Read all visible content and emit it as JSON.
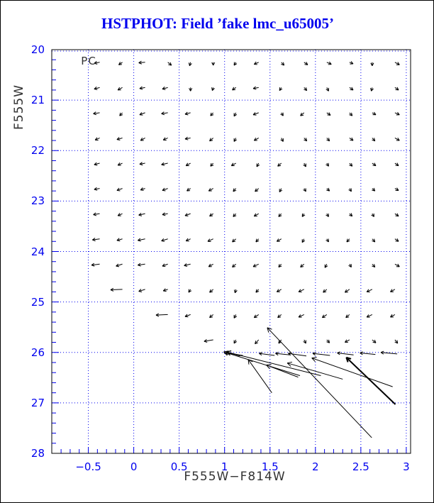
{
  "window": {
    "background": "#ffffff",
    "border_color": "#000000"
  },
  "chart_data": {
    "type": "scatter",
    "subtype": "quiver-vector-field",
    "title": "HSTPHOT: Field ’fake lmc_u65005’",
    "title_color": "#0000ee",
    "xlabel": "F555W−F814W",
    "ylabel": "F555W",
    "axis_label_color": "#333333",
    "xlim": [
      -0.9,
      3.05
    ],
    "ylim": [
      28,
      20
    ],
    "y_axis_inverted": true,
    "x_ticks": [
      -0.5,
      0,
      0.5,
      1,
      1.5,
      2,
      2.5,
      3
    ],
    "x_tick_labels": [
      "−0.5",
      "0",
      "0.5",
      "1",
      "1.5",
      "2",
      "2.5",
      "3"
    ],
    "y_ticks": [
      20,
      21,
      22,
      23,
      24,
      25,
      26,
      27,
      28
    ],
    "y_tick_labels": [
      "20",
      "21",
      "22",
      "23",
      "24",
      "25",
      "26",
      "27",
      "28"
    ],
    "x_minor_step": 0.1,
    "y_minor_step": 0.2,
    "tick_color": "#0000ee",
    "grid": true,
    "grid_style": "dotted",
    "grid_color": "#0000ee",
    "frame_color": "#000000",
    "arrow_color": "#000000",
    "annotation": {
      "text": "PC",
      "x": -0.58,
      "y": 20.1
    },
    "arrows": [
      [
        -0.375,
        20.25,
        -0.06,
        0.02
      ],
      [
        -0.125,
        20.25,
        -0.04,
        0.05
      ],
      [
        0.125,
        20.25,
        -0.07,
        0.01
      ],
      [
        0.375,
        20.25,
        0.04,
        0.06
      ],
      [
        0.625,
        20.25,
        -0.01,
        0.07
      ],
      [
        0.875,
        20.25,
        0.0,
        0.06
      ],
      [
        1.125,
        20.25,
        -0.02,
        0.06
      ],
      [
        1.375,
        20.25,
        -0.05,
        0.04
      ],
      [
        1.625,
        20.25,
        0.03,
        0.06
      ],
      [
        1.875,
        20.25,
        0.04,
        0.05
      ],
      [
        2.125,
        20.25,
        0.05,
        0.04
      ],
      [
        2.375,
        20.25,
        0.04,
        0.03
      ],
      [
        2.625,
        20.25,
        0.0,
        0.07
      ],
      [
        2.875,
        20.25,
        0.05,
        0.05
      ],
      [
        -0.375,
        20.75,
        -0.06,
        0.03
      ],
      [
        -0.125,
        20.75,
        -0.05,
        0.05
      ],
      [
        0.125,
        20.75,
        -0.06,
        0.02
      ],
      [
        0.375,
        20.75,
        -0.06,
        0.03
      ],
      [
        0.625,
        20.75,
        0.0,
        0.07
      ],
      [
        0.875,
        20.75,
        -0.01,
        0.06
      ],
      [
        1.125,
        20.75,
        -0.04,
        0.05
      ],
      [
        1.375,
        20.75,
        -0.06,
        0.02
      ],
      [
        1.625,
        20.75,
        -0.02,
        0.06
      ],
      [
        1.875,
        20.75,
        0.03,
        0.06
      ],
      [
        2.125,
        20.75,
        0.02,
        0.07
      ],
      [
        2.375,
        20.75,
        0.04,
        0.05
      ],
      [
        2.625,
        20.75,
        -0.01,
        0.07
      ],
      [
        2.875,
        20.75,
        0.04,
        0.05
      ],
      [
        -0.375,
        21.25,
        -0.07,
        0.02
      ],
      [
        -0.125,
        21.25,
        -0.03,
        0.06
      ],
      [
        0.125,
        21.25,
        -0.06,
        0.04
      ],
      [
        0.375,
        21.25,
        -0.07,
        0.02
      ],
      [
        0.625,
        21.25,
        -0.06,
        0.03
      ],
      [
        0.875,
        21.25,
        -0.03,
        0.06
      ],
      [
        1.125,
        21.25,
        -0.02,
        0.07
      ],
      [
        1.375,
        21.25,
        -0.06,
        0.04
      ],
      [
        1.625,
        21.25,
        0.02,
        0.06
      ],
      [
        1.875,
        21.25,
        -0.04,
        0.06
      ],
      [
        2.125,
        21.25,
        0.04,
        0.05
      ],
      [
        2.375,
        21.25,
        0.03,
        0.06
      ],
      [
        2.625,
        21.25,
        0.04,
        0.04
      ],
      [
        2.875,
        21.25,
        0.05,
        0.04
      ],
      [
        -0.375,
        21.75,
        -0.05,
        0.04
      ],
      [
        -0.125,
        21.75,
        -0.06,
        0.03
      ],
      [
        0.125,
        21.75,
        -0.05,
        0.05
      ],
      [
        0.375,
        21.75,
        -0.05,
        0.04
      ],
      [
        0.625,
        21.75,
        -0.06,
        0.02
      ],
      [
        0.875,
        21.75,
        -0.04,
        0.06
      ],
      [
        1.125,
        21.75,
        -0.02,
        0.07
      ],
      [
        1.375,
        21.75,
        -0.05,
        0.05
      ],
      [
        1.625,
        21.75,
        0.02,
        0.07
      ],
      [
        1.875,
        21.75,
        0.03,
        0.06
      ],
      [
        2.125,
        21.75,
        0.03,
        0.06
      ],
      [
        2.375,
        21.75,
        0.04,
        0.05
      ],
      [
        2.625,
        21.75,
        0.03,
        0.06
      ],
      [
        2.875,
        21.75,
        0.05,
        0.05
      ],
      [
        -0.375,
        22.25,
        -0.06,
        0.03
      ],
      [
        -0.125,
        22.25,
        -0.05,
        0.04
      ],
      [
        0.125,
        22.25,
        -0.06,
        0.02
      ],
      [
        0.375,
        22.25,
        -0.07,
        0.03
      ],
      [
        0.625,
        22.25,
        -0.05,
        0.05
      ],
      [
        0.875,
        22.25,
        -0.03,
        0.06
      ],
      [
        1.125,
        22.25,
        -0.05,
        0.05
      ],
      [
        1.375,
        22.25,
        -0.02,
        0.07
      ],
      [
        1.625,
        22.25,
        -0.04,
        0.06
      ],
      [
        1.875,
        22.25,
        0.02,
        0.07
      ],
      [
        2.125,
        22.25,
        0.02,
        0.06
      ],
      [
        2.375,
        22.25,
        0.03,
        0.06
      ],
      [
        2.625,
        22.25,
        0.04,
        0.05
      ],
      [
        2.875,
        22.25,
        0.04,
        0.05
      ],
      [
        -0.375,
        22.75,
        -0.06,
        0.02
      ],
      [
        -0.125,
        22.75,
        -0.06,
        0.04
      ],
      [
        0.125,
        22.75,
        -0.05,
        0.03
      ],
      [
        0.375,
        22.75,
        -0.06,
        0.04
      ],
      [
        0.625,
        22.75,
        -0.04,
        0.05
      ],
      [
        0.875,
        22.75,
        -0.05,
        0.05
      ],
      [
        1.125,
        22.75,
        -0.03,
        0.06
      ],
      [
        1.375,
        22.75,
        -0.04,
        0.06
      ],
      [
        1.625,
        22.75,
        -0.02,
        0.07
      ],
      [
        1.875,
        22.75,
        0.02,
        0.06
      ],
      [
        2.125,
        22.75,
        0.03,
        0.05
      ],
      [
        2.375,
        22.75,
        0.02,
        0.06
      ],
      [
        2.625,
        22.75,
        0.03,
        0.05
      ],
      [
        2.875,
        22.75,
        0.04,
        0.04
      ],
      [
        -0.375,
        23.25,
        -0.07,
        0.02
      ],
      [
        -0.125,
        23.25,
        -0.05,
        0.04
      ],
      [
        0.125,
        23.25,
        -0.07,
        0.03
      ],
      [
        0.375,
        23.25,
        -0.06,
        0.02
      ],
      [
        0.625,
        23.25,
        -0.06,
        0.04
      ],
      [
        0.875,
        23.25,
        -0.04,
        0.05
      ],
      [
        1.125,
        23.25,
        -0.03,
        0.06
      ],
      [
        1.375,
        23.25,
        -0.05,
        0.05
      ],
      [
        1.625,
        23.25,
        -0.03,
        0.06
      ],
      [
        1.875,
        23.25,
        -0.02,
        0.06
      ],
      [
        2.125,
        23.25,
        0.02,
        0.06
      ],
      [
        2.375,
        23.25,
        0.03,
        0.05
      ],
      [
        2.625,
        23.25,
        0.02,
        0.06
      ],
      [
        2.875,
        23.25,
        0.04,
        0.05
      ],
      [
        -0.375,
        23.75,
        -0.08,
        0.02
      ],
      [
        -0.125,
        23.75,
        -0.06,
        0.03
      ],
      [
        0.125,
        23.75,
        -0.08,
        0.03
      ],
      [
        0.375,
        23.75,
        -0.07,
        0.04
      ],
      [
        0.625,
        23.75,
        -0.05,
        0.04
      ],
      [
        0.875,
        23.75,
        -0.06,
        0.05
      ],
      [
        1.125,
        23.75,
        -0.04,
        0.06
      ],
      [
        1.375,
        23.75,
        -0.03,
        0.06
      ],
      [
        1.625,
        23.75,
        -0.05,
        0.05
      ],
      [
        1.875,
        23.75,
        -0.02,
        0.07
      ],
      [
        2.125,
        23.75,
        0.02,
        0.06
      ],
      [
        2.375,
        23.75,
        -0.03,
        0.06
      ],
      [
        2.625,
        23.75,
        0.03,
        0.06
      ],
      [
        2.875,
        23.75,
        0.04,
        0.05
      ],
      [
        -0.375,
        24.25,
        -0.09,
        0.02
      ],
      [
        -0.125,
        24.25,
        -0.07,
        0.04
      ],
      [
        0.125,
        24.25,
        -0.08,
        0.02
      ],
      [
        0.375,
        24.25,
        -0.06,
        0.04
      ],
      [
        0.625,
        24.25,
        -0.07,
        0.03
      ],
      [
        0.875,
        24.25,
        -0.05,
        0.05
      ],
      [
        1.125,
        24.25,
        -0.04,
        0.06
      ],
      [
        1.375,
        24.25,
        -0.06,
        0.05
      ],
      [
        1.625,
        24.25,
        -0.03,
        0.06
      ],
      [
        1.875,
        24.25,
        -0.04,
        0.06
      ],
      [
        2.125,
        24.25,
        -0.02,
        0.07
      ],
      [
        2.375,
        24.25,
        0.02,
        0.06
      ],
      [
        2.625,
        24.25,
        0.03,
        0.06
      ],
      [
        2.875,
        24.25,
        0.05,
        0.05
      ],
      [
        -0.125,
        24.75,
        -0.13,
        0.01
      ],
      [
        0.125,
        24.75,
        -0.07,
        0.04
      ],
      [
        0.375,
        24.75,
        -0.05,
        0.03
      ],
      [
        0.625,
        24.75,
        -0.02,
        0.06
      ],
      [
        0.875,
        24.75,
        -0.04,
        0.06
      ],
      [
        1.125,
        24.75,
        -0.01,
        0.07
      ],
      [
        1.375,
        24.75,
        -0.03,
        0.06
      ],
      [
        1.625,
        24.75,
        -0.05,
        0.05
      ],
      [
        1.875,
        24.75,
        -0.06,
        0.05
      ],
      [
        2.125,
        24.75,
        -0.04,
        0.06
      ],
      [
        2.375,
        24.75,
        -0.05,
        0.06
      ],
      [
        2.625,
        24.75,
        -0.06,
        0.05
      ],
      [
        2.875,
        24.75,
        -0.05,
        0.05
      ],
      [
        0.375,
        25.25,
        -0.13,
        0.01
      ],
      [
        0.625,
        25.25,
        -0.06,
        0.04
      ],
      [
        0.875,
        25.25,
        -0.04,
        0.06
      ],
      [
        1.125,
        25.25,
        -0.02,
        0.07
      ],
      [
        1.375,
        25.25,
        -0.05,
        0.06
      ],
      [
        1.625,
        25.25,
        -0.04,
        0.06
      ],
      [
        1.875,
        25.25,
        -0.06,
        0.05
      ],
      [
        2.125,
        25.25,
        -0.05,
        0.06
      ],
      [
        2.375,
        25.25,
        -0.04,
        0.06
      ],
      [
        2.625,
        25.25,
        -0.06,
        0.05
      ],
      [
        2.875,
        25.25,
        -0.05,
        0.05
      ],
      [
        0.875,
        25.75,
        -0.1,
        0.03
      ],
      [
        1.125,
        25.75,
        -0.02,
        0.07
      ],
      [
        1.375,
        25.75,
        -0.04,
        0.08
      ],
      [
        1.625,
        25.75,
        -0.03,
        0.07
      ],
      [
        1.875,
        25.75,
        0.02,
        0.07
      ],
      [
        2.125,
        25.75,
        0.03,
        0.06
      ],
      [
        2.375,
        25.75,
        -0.05,
        0.05
      ],
      [
        2.625,
        25.75,
        0.04,
        0.06
      ],
      [
        2.875,
        25.75,
        0.03,
        0.07
      ],
      [
        1.2,
        26.06,
        -0.19,
        -0.05
      ],
      [
        1.55,
        26.06,
        -0.17,
        -0.04
      ],
      [
        1.72,
        26.05,
        -0.16,
        -0.03
      ],
      [
        1.9,
        26.07,
        -0.2,
        -0.05
      ],
      [
        2.16,
        26.06,
        -0.19,
        -0.04
      ],
      [
        2.42,
        26.05,
        -0.18,
        -0.04
      ],
      [
        2.66,
        26.04,
        -0.17,
        -0.03
      ],
      [
        2.9,
        26.03,
        -0.18,
        -0.03
      ]
    ],
    "long_arrows": [
      [
        1.17,
        26.07,
        -0.15,
        -0.08,
        1
      ],
      [
        1.83,
        26.46,
        -0.84,
        -0.47,
        1
      ],
      [
        2.06,
        26.46,
        -1.04,
        -0.47,
        1
      ],
      [
        1.52,
        26.8,
        -0.26,
        -0.66,
        1
      ],
      [
        1.81,
        26.49,
        -0.35,
        -0.24,
        1
      ],
      [
        2.3,
        26.53,
        -0.61,
        -0.32,
        1
      ],
      [
        2.85,
        26.68,
        -0.89,
        -0.57,
        1
      ],
      [
        2.88,
        27.03,
        -0.54,
        -0.93,
        2
      ],
      [
        2.62,
        27.69,
        -1.15,
        -2.18,
        1
      ]
    ]
  }
}
